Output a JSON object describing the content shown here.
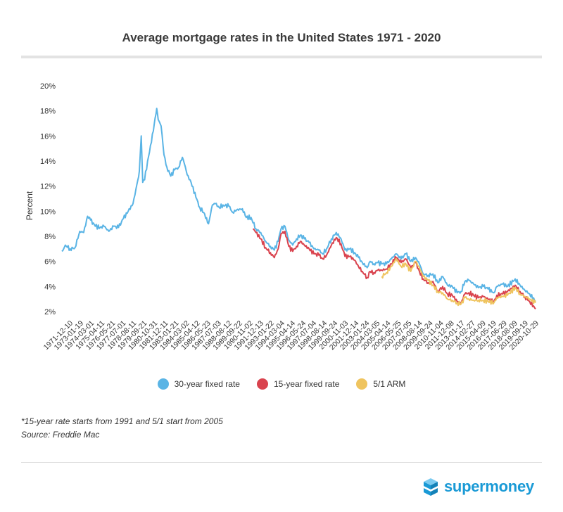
{
  "title": "Average mortgage rates in the United States 1971 - 2020",
  "notes": {
    "footnote": "*15-year rate starts from 1991 and 5/1 start from 2005",
    "source": "Source: Freddie Mac"
  },
  "brand": {
    "name": "supermoney",
    "logo_icon": "stacked-cubes-icon",
    "color": "#1a9ad6"
  },
  "chart_data": {
    "type": "line",
    "title": "Average mortgage rates in the United States 1971 - 2020",
    "ylabel": "Percent",
    "xlabel": "",
    "ylim": [
      2,
      20
    ],
    "y_ticks": [
      "2%",
      "4%",
      "6%",
      "8%",
      "10%",
      "12%",
      "14%",
      "16%",
      "18%",
      "20%"
    ],
    "x_tick_labels": [
      "1971-12-10",
      "1973-01-19",
      "1974-03-01",
      "1975-04-11",
      "1976-05-21",
      "1977-07-01",
      "1978-08-11",
      "1979-09-21",
      "1980-10-31",
      "1981-12-11",
      "1983-01-21",
      "1984-03-02",
      "1985-04-12",
      "1986-05-23",
      "1987-07-03",
      "1988-08-12",
      "1989-09-22",
      "1990-11-02",
      "1991-12-13",
      "1993-01-22",
      "1994-03-04",
      "1995-04-14",
      "1996-05-24",
      "1997-07-04",
      "1998-08-14",
      "1999-09-24",
      "2000-11-03",
      "2001-12-14",
      "2003-01-24",
      "2004-03-05",
      "2005-04-14",
      "2006-05-25",
      "2007-07-05",
      "2008-08-14",
      "2009-09-24",
      "2010-11-04",
      "2011-12-08",
      "2013-01-17",
      "2014-02-27",
      "2015-04-09",
      "2016-05-19",
      "2017-06-29",
      "2018-08-09",
      "2019-09-19",
      "2020-10-29"
    ],
    "grid": false,
    "legend_position": "bottom",
    "series": [
      {
        "name": "30-year fixed rate",
        "color": "#5ab4e5",
        "x": [
          1971.95,
          1972.3,
          1972.8,
          1973.3,
          1973.8,
          1974.2,
          1974.6,
          1974.9,
          1975.4,
          1975.9,
          1976.3,
          1976.8,
          1977.3,
          1977.8,
          1978.3,
          1978.8,
          1979.3,
          1979.8,
          1979.95,
          1980.15,
          1980.3,
          1980.5,
          1980.8,
          1981.2,
          1981.5,
          1981.75,
          1981.9,
          1982.2,
          1982.5,
          1982.8,
          1983.2,
          1983.6,
          1984.0,
          1984.4,
          1984.6,
          1984.9,
          1985.3,
          1985.8,
          1986.2,
          1986.6,
          1987.1,
          1987.5,
          1987.8,
          1988.2,
          1988.6,
          1989.2,
          1989.6,
          1990.0,
          1990.6,
          1991.0,
          1991.5,
          1992.0,
          1992.5,
          1993.0,
          1993.5,
          1993.9,
          1994.3,
          1994.6,
          1995.0,
          1995.4,
          1995.8,
          1996.2,
          1996.6,
          1997.0,
          1997.5,
          1998.0,
          1998.5,
          1998.9,
          1999.3,
          1999.8,
          2000.3,
          2000.8,
          2001.2,
          2001.7,
          2002.2,
          2002.6,
          2003.0,
          2003.5,
          2003.8,
          2004.2,
          2004.6,
          2005.0,
          2005.5,
          2006.0,
          2006.5,
          2007.0,
          2007.5,
          2008.0,
          2008.5,
          2008.9,
          2009.3,
          2009.8,
          2010.3,
          2010.8,
          2011.3,
          2011.8,
          2012.3,
          2012.8,
          2013.2,
          2013.6,
          2014.0,
          2014.5,
          2015.0,
          2015.5,
          2016.0,
          2016.6,
          2016.9,
          2017.5,
          2018.0,
          2018.8,
          2019.3,
          2019.8,
          2020.3,
          2020.9
        ],
        "values": [
          6.8,
          7.3,
          7.0,
          7.1,
          8.4,
          8.3,
          9.6,
          9.3,
          8.8,
          8.7,
          8.8,
          8.4,
          8.8,
          8.7,
          9.4,
          10.0,
          10.6,
          12.5,
          13.2,
          16.0,
          12.3,
          12.5,
          14.0,
          15.5,
          17.0,
          18.2,
          17.3,
          16.8,
          14.5,
          13.5,
          12.8,
          13.3,
          13.5,
          14.3,
          13.8,
          12.9,
          12.3,
          11.1,
          10.3,
          9.9,
          9.0,
          10.5,
          10.6,
          10.3,
          10.5,
          10.4,
          9.9,
          10.1,
          10.2,
          9.5,
          9.5,
          8.6,
          8.3,
          7.6,
          7.2,
          6.9,
          7.6,
          8.6,
          8.8,
          7.7,
          7.3,
          7.8,
          8.1,
          7.8,
          7.5,
          7.0,
          6.9,
          6.6,
          7.0,
          7.8,
          8.3,
          7.8,
          6.9,
          7.0,
          6.7,
          6.3,
          5.9,
          5.5,
          6.0,
          5.8,
          5.9,
          5.8,
          5.8,
          6.2,
          6.6,
          6.2,
          6.6,
          6.0,
          6.3,
          5.8,
          5.0,
          4.9,
          5.0,
          4.3,
          4.8,
          4.1,
          4.0,
          3.5,
          3.6,
          4.4,
          4.5,
          4.2,
          3.9,
          4.0,
          3.8,
          3.5,
          4.0,
          4.2,
          4.0,
          4.6,
          4.1,
          3.7,
          3.4,
          2.8
        ]
      },
      {
        "name": "15-year fixed rate",
        "color": "#d9434e",
        "x": [
          1991.7,
          1992.0,
          1992.5,
          1993.0,
          1993.5,
          1993.9,
          1994.3,
          1994.6,
          1995.0,
          1995.4,
          1995.8,
          1996.2,
          1996.6,
          1997.0,
          1997.5,
          1998.0,
          1998.5,
          1998.9,
          1999.3,
          1999.8,
          2000.3,
          2000.8,
          2001.2,
          2001.7,
          2002.2,
          2002.6,
          2003.0,
          2003.5,
          2003.8,
          2004.2,
          2004.6,
          2005.0,
          2005.5,
          2006.0,
          2006.5,
          2007.0,
          2007.5,
          2008.0,
          2008.5,
          2008.9,
          2009.3,
          2009.8,
          2010.3,
          2010.8,
          2011.3,
          2011.8,
          2012.3,
          2012.8,
          2013.2,
          2013.6,
          2014.0,
          2014.5,
          2015.0,
          2015.5,
          2016.0,
          2016.6,
          2016.9,
          2017.5,
          2018.0,
          2018.8,
          2019.3,
          2019.8,
          2020.3,
          2020.9
        ],
        "values": [
          8.6,
          8.3,
          7.8,
          7.1,
          6.7,
          6.3,
          7.0,
          8.2,
          8.4,
          7.2,
          6.8,
          7.2,
          7.6,
          7.3,
          7.0,
          6.6,
          6.5,
          6.2,
          6.5,
          7.3,
          7.9,
          7.4,
          6.4,
          6.4,
          6.1,
          5.6,
          5.2,
          4.7,
          5.2,
          5.1,
          5.3,
          5.3,
          5.4,
          5.8,
          6.3,
          5.9,
          6.2,
          5.5,
          5.9,
          5.2,
          4.6,
          4.3,
          4.4,
          3.6,
          4.0,
          3.4,
          3.3,
          2.8,
          2.7,
          3.4,
          3.5,
          3.3,
          3.1,
          3.2,
          3.0,
          2.8,
          3.3,
          3.4,
          3.6,
          4.1,
          3.6,
          3.2,
          2.8,
          2.2
        ]
      },
      {
        "name": "5/1 ARM",
        "color": "#efc45f",
        "x": [
          2005.0,
          2005.5,
          2006.0,
          2006.5,
          2007.0,
          2007.5,
          2008.0,
          2008.5,
          2008.9,
          2009.3,
          2009.8,
          2010.3,
          2010.8,
          2011.3,
          2011.8,
          2012.3,
          2012.8,
          2013.2,
          2013.6,
          2014.0,
          2014.5,
          2015.0,
          2015.5,
          2016.0,
          2016.6,
          2016.9,
          2017.5,
          2018.0,
          2018.8,
          2019.3,
          2019.8,
          2020.3,
          2020.9
        ],
        "values": [
          4.8,
          5.1,
          5.6,
          6.2,
          5.6,
          5.8,
          5.2,
          6.0,
          5.5,
          4.8,
          4.5,
          4.1,
          3.6,
          3.5,
          3.0,
          2.9,
          2.7,
          2.6,
          3.1,
          3.0,
          2.9,
          2.9,
          2.9,
          2.8,
          2.7,
          3.1,
          3.2,
          3.3,
          3.9,
          3.4,
          3.2,
          3.0,
          2.7
        ]
      }
    ]
  }
}
